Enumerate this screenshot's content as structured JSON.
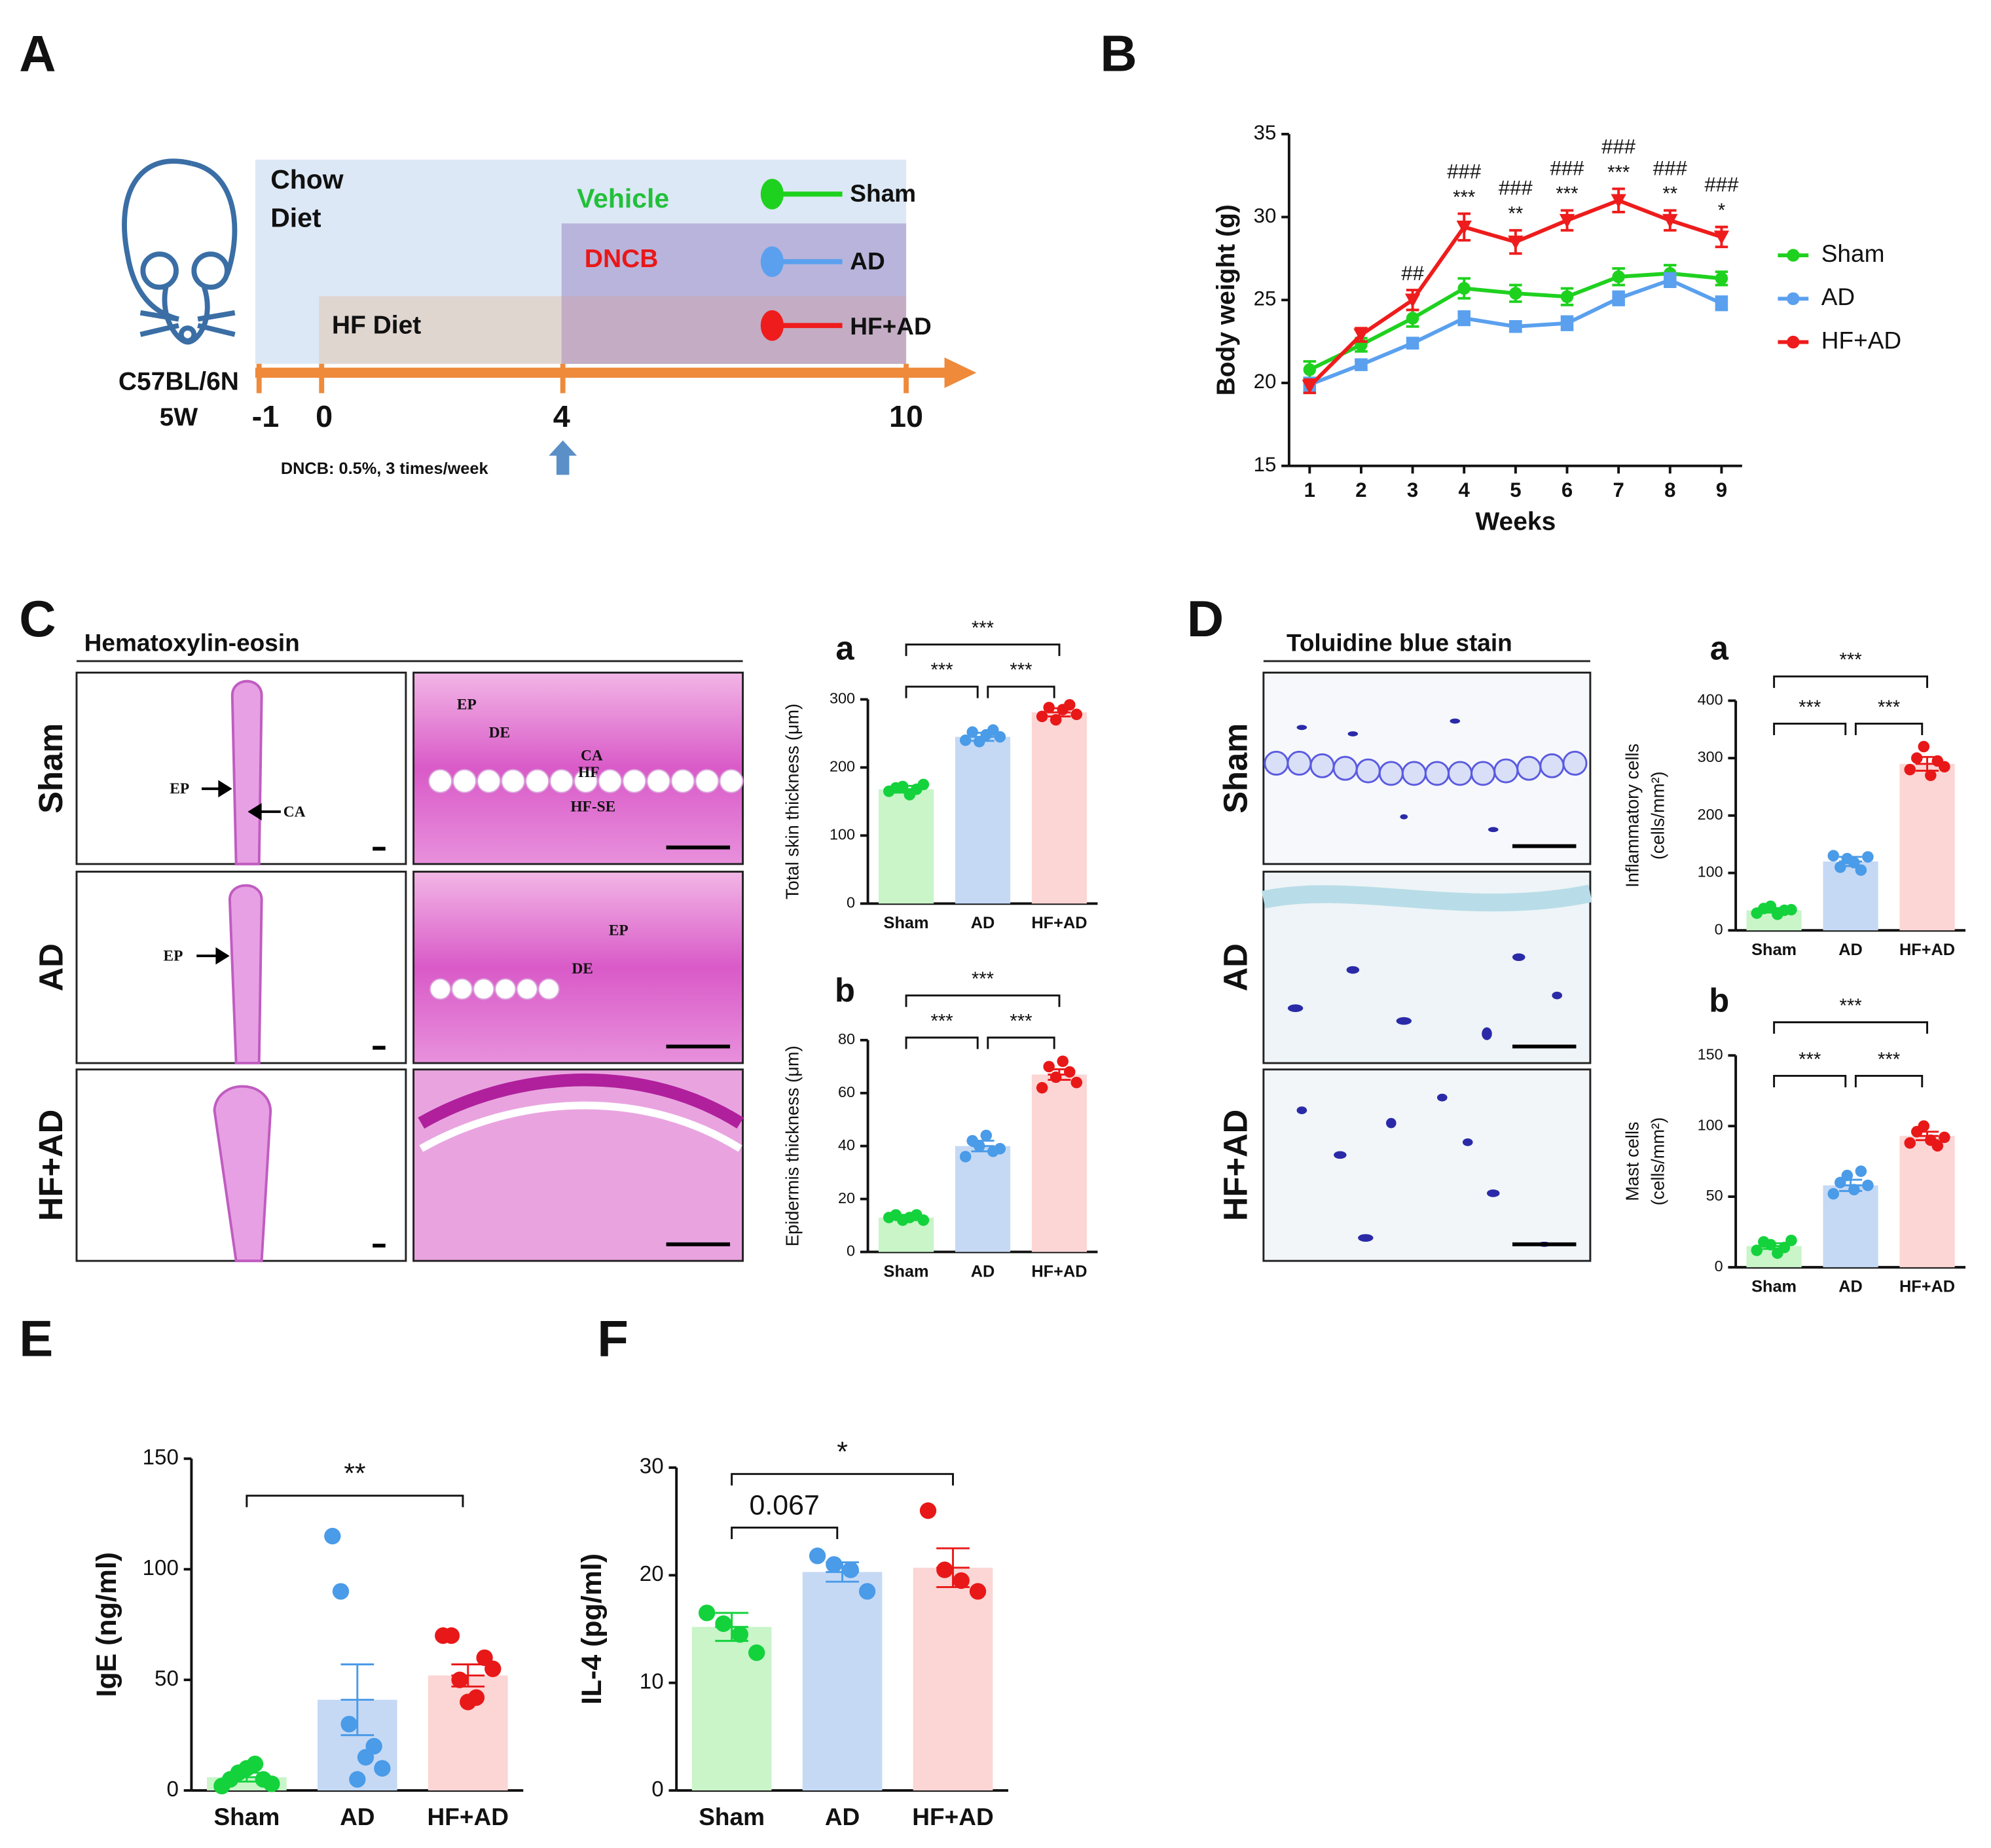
{
  "panel_labels": [
    "A",
    "B",
    "C",
    "D",
    "E",
    "F"
  ],
  "diagram": {
    "strain": "C57BL/6N",
    "age": "5W",
    "chow_1": "Chow",
    "chow_2": "Diet",
    "vehicle": "Vehicle",
    "dncb": "DNCB",
    "hf_diet": "HF Diet",
    "groups": [
      "Sham",
      "AD",
      "HF+AD"
    ],
    "timeline": [
      "-1",
      "0",
      "4",
      "10"
    ],
    "note": "DNCB: 0.5%, 3 times/week"
  },
  "histology": {
    "he_title": "Hematoxylin-eosin",
    "tb_title": "Toluidine blue stain",
    "rows": [
      "Sham",
      "AD",
      "HF+AD"
    ],
    "he_marks": [
      "EP",
      "CA",
      "EP",
      "DE",
      "CA",
      "HF",
      "HF-SE",
      "EP",
      "EP",
      "DE"
    ]
  },
  "chart_data": [
    {
      "type": "line",
      "xlabel": "Weeks",
      "ylabel": "Body weight (g)",
      "x": [
        1,
        2,
        3,
        4,
        5,
        6,
        7,
        8,
        9
      ],
      "xlim": [
        0.6,
        9.4
      ],
      "xticks": [
        1,
        2,
        3,
        4,
        5,
        6,
        7,
        8,
        9
      ],
      "ylim": [
        15,
        35
      ],
      "yticks": [
        15,
        20,
        25,
        30,
        35
      ],
      "legend": "right",
      "series": [
        {
          "name": "Sham",
          "color": "#1fd11f",
          "marker": "circle",
          "values": [
            20.8,
            22.3,
            23.9,
            25.7,
            25.4,
            25.2,
            26.4,
            26.6,
            26.3
          ],
          "errors": [
            0.5,
            0.4,
            0.5,
            0.6,
            0.5,
            0.5,
            0.5,
            0.5,
            0.4
          ]
        },
        {
          "name": "AD",
          "color": "#5aa0ee",
          "marker": "square",
          "values": [
            19.9,
            21.1,
            22.4,
            23.9,
            23.4,
            23.6,
            25.1,
            26.2,
            24.8
          ],
          "errors": [
            0.4,
            0.3,
            0.3,
            0.4,
            0.3,
            0.4,
            0.4,
            0.4,
            0.4
          ]
        },
        {
          "name": "HF+AD",
          "color": "#ee1c1c",
          "marker": "triangle-down",
          "values": [
            19.8,
            22.9,
            25.0,
            29.4,
            28.5,
            29.8,
            31.0,
            29.8,
            28.8
          ],
          "errors": [
            0.4,
            0.4,
            0.6,
            0.8,
            0.7,
            0.6,
            0.7,
            0.6,
            0.6
          ]
        }
      ],
      "hash_labels": [
        null,
        null,
        "##",
        "###",
        "###",
        "###",
        "###",
        "###",
        "###"
      ],
      "star_labels": [
        null,
        null,
        null,
        "***",
        "**",
        "***",
        "***",
        "**",
        "*"
      ]
    },
    {
      "type": "bar",
      "title": "a",
      "ylabel": [
        "Total skin thickness (μm)"
      ],
      "categories": [
        "Sham",
        "AD",
        "HF+AD"
      ],
      "values": [
        168,
        245,
        281
      ],
      "errors": [
        5,
        6,
        6
      ],
      "points": [
        [
          165,
          170,
          172,
          160,
          168,
          175
        ],
        [
          240,
          252,
          238,
          248,
          255,
          245
        ],
        [
          275,
          288,
          270,
          285,
          292,
          278
        ]
      ],
      "colors": [
        "#c9f5c9",
        "#c5d9f5",
        "#fcd5d5"
      ],
      "point_colors": [
        "#14d23c",
        "#4a9be8",
        "#e81818"
      ],
      "ylim": [
        0,
        300
      ],
      "yticks": [
        0,
        100,
        200,
        300
      ],
      "brackets": [
        {
          "pair": [
            "Sham",
            "AD"
          ],
          "label": "***"
        },
        {
          "pair": [
            "AD",
            "HF+AD"
          ],
          "label": "***"
        },
        {
          "pair": [
            "Sham",
            "HF+AD"
          ],
          "label": "***"
        }
      ]
    },
    {
      "type": "bar",
      "title": "b",
      "ylabel": [
        "Epidermis thickness (μm)"
      ],
      "categories": [
        "Sham",
        "AD",
        "HF+AD"
      ],
      "values": [
        13,
        40,
        67
      ],
      "errors": [
        1,
        2,
        2
      ],
      "points": [
        [
          13,
          14,
          12,
          13,
          14,
          12
        ],
        [
          36,
          42,
          40,
          44,
          38,
          39
        ],
        [
          62,
          70,
          66,
          72,
          68,
          64
        ]
      ],
      "colors": [
        "#c9f5c9",
        "#c5d9f5",
        "#fcd5d5"
      ],
      "point_colors": [
        "#14d23c",
        "#4a9be8",
        "#e81818"
      ],
      "ylim": [
        0,
        80
      ],
      "yticks": [
        0,
        20,
        40,
        60,
        80
      ],
      "brackets": [
        {
          "pair": [
            "Sham",
            "AD"
          ],
          "label": "***"
        },
        {
          "pair": [
            "AD",
            "HF+AD"
          ],
          "label": "***"
        },
        {
          "pair": [
            "Sham",
            "HF+AD"
          ],
          "label": "***"
        }
      ]
    },
    {
      "type": "bar",
      "title": "a",
      "ylabel": [
        "Inflammatory cells",
        "(cells/mm²)"
      ],
      "categories": [
        "Sham",
        "AD",
        "HF+AD"
      ],
      "values": [
        35,
        120,
        290
      ],
      "errors": [
        4,
        8,
        12
      ],
      "points": [
        [
          30,
          38,
          42,
          28,
          35,
          36
        ],
        [
          130,
          110,
          125,
          118,
          105,
          128
        ],
        [
          280,
          300,
          320,
          270,
          295,
          285
        ]
      ],
      "colors": [
        "#c9f5c9",
        "#c5d9f5",
        "#fcd5d5"
      ],
      "point_colors": [
        "#14d23c",
        "#4a9be8",
        "#e81818"
      ],
      "ylim": [
        0,
        400
      ],
      "yticks": [
        0,
        100,
        200,
        300,
        400
      ],
      "brackets": [
        {
          "pair": [
            "Sham",
            "AD"
          ],
          "label": "***"
        },
        {
          "pair": [
            "AD",
            "HF+AD"
          ],
          "label": "***"
        },
        {
          "pair": [
            "Sham",
            "HF+AD"
          ],
          "label": "***"
        }
      ]
    },
    {
      "type": "bar",
      "title": "b",
      "ylabel": [
        "Mast cells",
        "(cells/mm²)"
      ],
      "categories": [
        "Sham",
        "AD",
        "HF+AD"
      ],
      "values": [
        15,
        58,
        93
      ],
      "errors": [
        2,
        4,
        3
      ],
      "points": [
        [
          12,
          18,
          16,
          10,
          14,
          19
        ],
        [
          52,
          60,
          65,
          55,
          68,
          58
        ],
        [
          88,
          96,
          100,
          90,
          86,
          92
        ]
      ],
      "colors": [
        "#c9f5c9",
        "#c5d9f5",
        "#fcd5d5"
      ],
      "point_colors": [
        "#14d23c",
        "#4a9be8",
        "#e81818"
      ],
      "ylim": [
        0,
        150
      ],
      "yticks": [
        0,
        50,
        100,
        150
      ],
      "brackets": [
        {
          "pair": [
            "Sham",
            "AD"
          ],
          "label": "***"
        },
        {
          "pair": [
            "AD",
            "HF+AD"
          ],
          "label": "***"
        },
        {
          "pair": [
            "Sham",
            "HF+AD"
          ],
          "label": "***"
        }
      ]
    },
    {
      "type": "bar",
      "ylabel": [
        "IgE (ng/ml)"
      ],
      "categories": [
        "Sham",
        "AD",
        "HF+AD"
      ],
      "values": [
        6,
        41,
        52
      ],
      "errors": [
        2,
        16,
        5
      ],
      "points": [
        [
          2,
          5,
          8,
          10,
          12,
          5,
          3
        ],
        [
          115,
          90,
          30,
          5,
          15,
          20,
          10
        ],
        [
          70,
          70,
          50,
          40,
          42,
          60,
          55
        ]
      ],
      "colors": [
        "#c9f5c9",
        "#c5d9f5",
        "#fcd5d5"
      ],
      "point_colors": [
        "#14d23c",
        "#4a9be8",
        "#e81818"
      ],
      "ylim": [
        0,
        150
      ],
      "yticks": [
        0,
        50,
        100,
        150
      ],
      "brackets": [
        {
          "pair": [
            "Sham",
            "HF+AD"
          ],
          "label": "**"
        }
      ]
    },
    {
      "type": "bar",
      "ylabel": [
        "IL-4 (pg/ml)"
      ],
      "categories": [
        "Sham",
        "AD",
        "HF+AD"
      ],
      "values": [
        15.2,
        20.3,
        20.7
      ],
      "errors": [
        1.3,
        0.9,
        1.8
      ],
      "points": [
        [
          16.5,
          15.5,
          14.5,
          12.8
        ],
        [
          21.8,
          21,
          20.5,
          18.5
        ],
        [
          26,
          20.5,
          19.5,
          18.5
        ]
      ],
      "colors": [
        "#c9f5c9",
        "#c5d9f5",
        "#fcd5d5"
      ],
      "point_colors": [
        "#14d23c",
        "#4a9be8",
        "#e81818"
      ],
      "ylim": [
        0,
        30
      ],
      "yticks": [
        0,
        10,
        20,
        30
      ],
      "brackets": [
        {
          "pair": [
            "Sham",
            "AD"
          ],
          "label": "0.067"
        },
        {
          "pair": [
            "Sham",
            "HF+AD"
          ],
          "label": "*"
        }
      ]
    }
  ]
}
